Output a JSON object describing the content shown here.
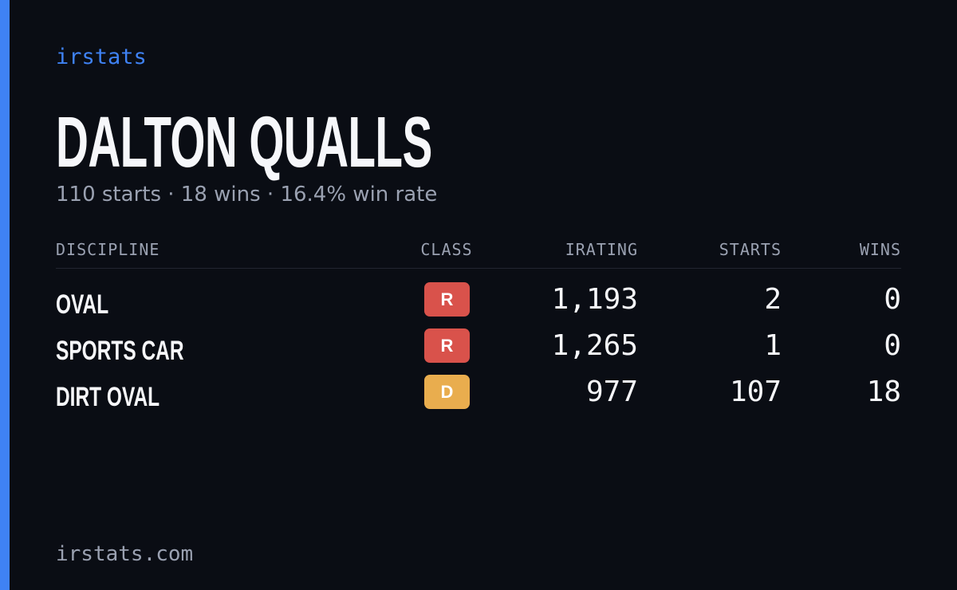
{
  "brand": "irstats",
  "header": {
    "title": "DALTON QUALLS",
    "subtitle": "110 starts · 18 wins · 16.4% win rate"
  },
  "table": {
    "columns": [
      "DISCIPLINE",
      "CLASS",
      "IRATING",
      "STARTS",
      "WINS"
    ],
    "rows": [
      {
        "discipline": "OVAL",
        "class": "R",
        "class_color": "#d9524b",
        "irating": "1,193",
        "starts": 2,
        "wins": 0
      },
      {
        "discipline": "SPORTS CAR",
        "class": "R",
        "class_color": "#d9524b",
        "irating": "1,265",
        "starts": 1,
        "wins": 0
      },
      {
        "discipline": "DIRT OVAL",
        "class": "D",
        "class_color": "#e9ad4e",
        "irating": "977",
        "starts": 107,
        "wins": 18
      }
    ]
  },
  "footer": "irstats.com"
}
